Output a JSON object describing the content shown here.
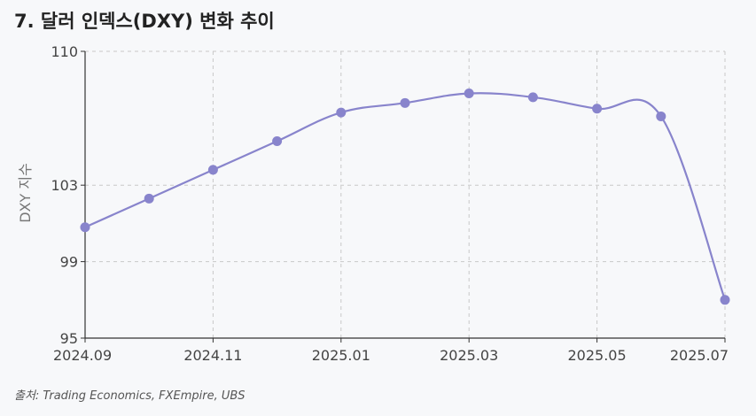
{
  "title": "7. 달러 인덱스(DXY) 변화 추이",
  "source": "출처: Trading Economics, FXEmpire, UBS",
  "chart_data": {
    "type": "line",
    "title": "7. 달러 인덱스(DXY) 변화 추이",
    "xlabel": "",
    "ylabel": "DXY 지수",
    "x": [
      "2024.09",
      "2024.10",
      "2024.11",
      "2024.12",
      "2025.01",
      "2025.02",
      "2025.03",
      "2025.04",
      "2025.05",
      "2025.06",
      "2025.07"
    ],
    "x_tick_labels": [
      "2024.09",
      "2024.11",
      "2025.01",
      "2025.03",
      "2025.05",
      "2025.07"
    ],
    "y_tick_labels": [
      95,
      99,
      103,
      110
    ],
    "ylim": [
      95,
      110
    ],
    "grid": true,
    "series": [
      {
        "values": [
          100.8,
          102.3,
          103.8,
          105.3,
          106.8,
          107.3,
          107.8,
          107.6,
          107.0,
          106.6,
          97.0
        ],
        "color": "#8884cc"
      }
    ]
  }
}
